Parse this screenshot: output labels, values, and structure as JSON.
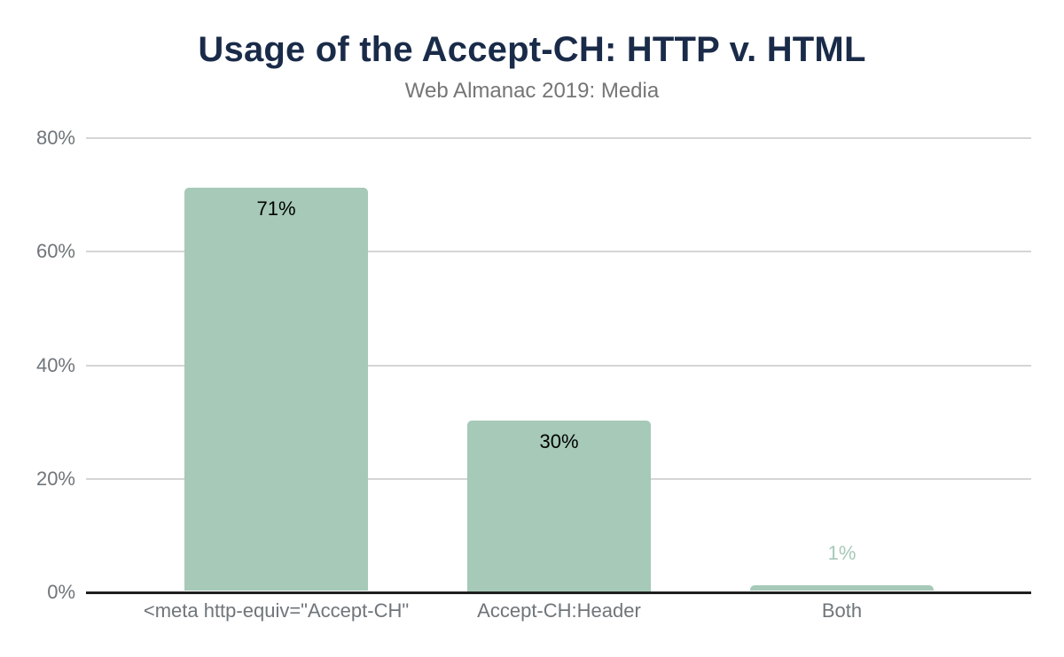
{
  "chart_data": {
    "type": "bar",
    "title": "Usage of the Accept-CH: HTTP v. HTML",
    "subtitle": "Web Almanac 2019: Media",
    "categories": [
      "<meta http-equiv=\"Accept-CH\"",
      "Accept-CH:Header",
      "Both"
    ],
    "values": [
      71,
      30,
      1
    ],
    "value_labels": [
      "71%",
      "30%",
      "1%"
    ],
    "xlabel": "",
    "ylabel": "",
    "ylim": [
      0,
      80
    ],
    "y_ticks": [
      {
        "value": 0,
        "label": "0%"
      },
      {
        "value": 20,
        "label": "20%"
      },
      {
        "value": 40,
        "label": "40%"
      },
      {
        "value": 60,
        "label": "60%"
      },
      {
        "value": 80,
        "label": "80%"
      }
    ],
    "grid": true,
    "legend": false,
    "colors": {
      "bar": "#a6c9b8",
      "title": "#1a2b49",
      "subtitle": "#757575",
      "tick_label": "#6f757a",
      "category_label": "#6f757a",
      "value_label_inside": "#000000",
      "value_label_outside": "#a6c9b8",
      "gridline": "#d5d5d5",
      "axis_line": "#1f1f1f",
      "background": "#ffffff"
    }
  }
}
